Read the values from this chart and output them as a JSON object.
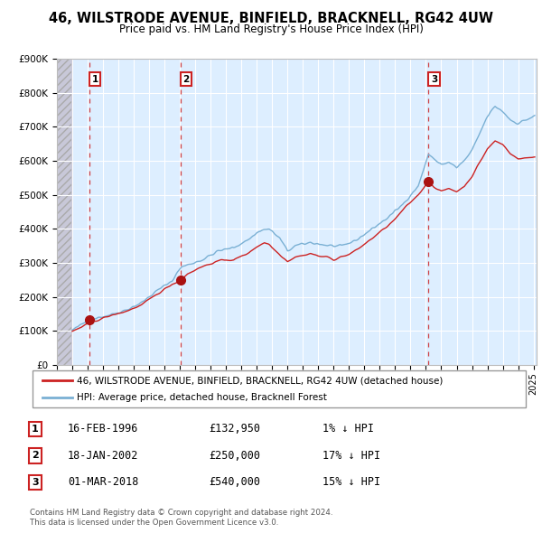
{
  "title": "46, WILSTRODE AVENUE, BINFIELD, BRACKNELL, RG42 4UW",
  "subtitle": "Price paid vs. HM Land Registry's House Price Index (HPI)",
  "ylim": [
    0,
    900000
  ],
  "xlim_start": 1994.0,
  "xlim_end": 2025.2,
  "yticks": [
    0,
    100000,
    200000,
    300000,
    400000,
    500000,
    600000,
    700000,
    800000,
    900000
  ],
  "ytick_labels": [
    "£0",
    "£100K",
    "£200K",
    "£300K",
    "£400K",
    "£500K",
    "£600K",
    "£700K",
    "£800K",
    "£900K"
  ],
  "xticks": [
    1994,
    1995,
    1996,
    1997,
    1998,
    1999,
    2000,
    2001,
    2002,
    2003,
    2004,
    2005,
    2006,
    2007,
    2008,
    2009,
    2010,
    2011,
    2012,
    2013,
    2014,
    2015,
    2016,
    2017,
    2018,
    2019,
    2020,
    2021,
    2022,
    2023,
    2024,
    2025
  ],
  "hpi_color": "#7ab0d4",
  "price_color": "#cc2222",
  "dot_color": "#aa1111",
  "background_main": "#ddeeff",
  "background_hatch": "#c8c8d8",
  "grid_color": "#ffffff",
  "hatch_end": 1994.92,
  "transaction_dates": [
    1996.12,
    2002.05,
    2018.17
  ],
  "transaction_prices": [
    132950,
    250000,
    540000
  ],
  "transaction_labels": [
    "1",
    "2",
    "3"
  ],
  "transaction_display": [
    {
      "num": "1",
      "date": "16-FEB-1996",
      "price": "£132,950",
      "hpi": "1% ↓ HPI"
    },
    {
      "num": "2",
      "date": "18-JAN-2002",
      "price": "£250,000",
      "hpi": "17% ↓ HPI"
    },
    {
      "num": "3",
      "date": "01-MAR-2018",
      "price": "£540,000",
      "hpi": "15% ↓ HPI"
    }
  ],
  "legend_line1": "46, WILSTRODE AVENUE, BINFIELD, BRACKNELL, RG42 4UW (detached house)",
  "legend_line2": "HPI: Average price, detached house, Bracknell Forest",
  "footer1": "Contains HM Land Registry data © Crown copyright and database right 2024.",
  "footer2": "This data is licensed under the Open Government Licence v3.0."
}
